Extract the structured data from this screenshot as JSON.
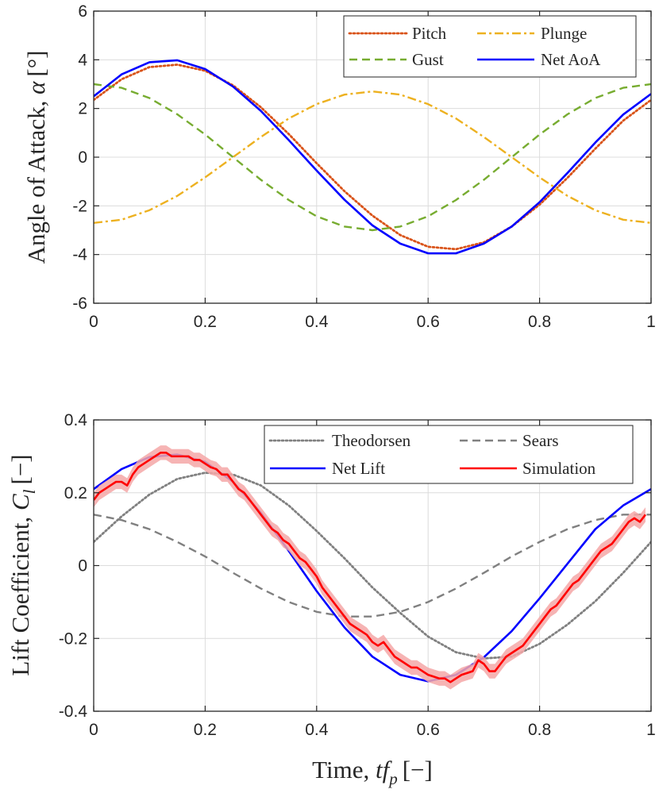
{
  "figure": {
    "xlabel_text": "Time, ",
    "xlabel_sym": "tf",
    "xlabel_sub": "p",
    "xlabel_unit": "[−]"
  },
  "chart_data": [
    {
      "type": "line",
      "title": "",
      "ylabel_text": "Angle of Attack, ",
      "ylabel_sym": "α",
      "ylabel_unit": "[°]",
      "xlim": [
        0,
        1
      ],
      "ylim": [
        -6,
        6
      ],
      "xticks": [
        0,
        0.2,
        0.4,
        0.6,
        0.8,
        1
      ],
      "xtick_labels": [
        "0",
        "0.2",
        "0.4",
        "0.6",
        "0.8",
        "1"
      ],
      "yticks": [
        -6,
        -4,
        -2,
        0,
        2,
        4,
        6
      ],
      "ytick_labels": [
        "-6",
        "-4",
        "-2",
        "0",
        "2",
        "4",
        "6"
      ],
      "grid": true,
      "legend_position": "top-right",
      "series": [
        {
          "name": "Pitch",
          "color": "#D95319",
          "style": "dotted",
          "x": [
            0,
            0.05,
            0.1,
            0.15,
            0.2,
            0.25,
            0.3,
            0.35,
            0.4,
            0.45,
            0.5,
            0.55,
            0.6,
            0.65,
            0.7,
            0.75,
            0.8,
            0.85,
            0.9,
            0.95,
            1
          ],
          "y": [
            2.35,
            3.2,
            3.7,
            3.8,
            3.55,
            2.95,
            2.05,
            0.95,
            -0.25,
            -1.4,
            -2.4,
            -3.2,
            -3.68,
            -3.78,
            -3.5,
            -2.85,
            -1.95,
            -0.85,
            0.35,
            1.5,
            2.35
          ]
        },
        {
          "name": "Plunge",
          "color": "#EDB120",
          "style": "dashdot",
          "x": [
            0,
            0.05,
            0.1,
            0.15,
            0.2,
            0.25,
            0.3,
            0.35,
            0.4,
            0.45,
            0.5,
            0.55,
            0.6,
            0.65,
            0.7,
            0.75,
            0.8,
            0.85,
            0.9,
            0.95,
            1
          ],
          "y": [
            -2.7,
            -2.57,
            -2.18,
            -1.59,
            -0.83,
            0,
            0.83,
            1.59,
            2.18,
            2.57,
            2.7,
            2.57,
            2.18,
            1.59,
            0.83,
            0,
            -0.83,
            -1.59,
            -2.18,
            -2.57,
            -2.7
          ]
        },
        {
          "name": "Gust",
          "color": "#77AC30",
          "style": "dashed",
          "x": [
            0,
            0.05,
            0.1,
            0.15,
            0.2,
            0.25,
            0.3,
            0.35,
            0.4,
            0.45,
            0.5,
            0.55,
            0.6,
            0.65,
            0.7,
            0.75,
            0.8,
            0.85,
            0.9,
            0.95,
            1
          ],
          "y": [
            3,
            2.85,
            2.43,
            1.76,
            0.93,
            0,
            -0.93,
            -1.76,
            -2.43,
            -2.85,
            -3,
            -2.85,
            -2.43,
            -1.76,
            -0.93,
            0,
            0.93,
            1.76,
            2.43,
            2.85,
            3
          ]
        },
        {
          "name": "Net AoA",
          "color": "#0000FF",
          "style": "solid",
          "x": [
            0,
            0.05,
            0.1,
            0.15,
            0.2,
            0.25,
            0.3,
            0.35,
            0.4,
            0.45,
            0.5,
            0.55,
            0.6,
            0.65,
            0.7,
            0.75,
            0.8,
            0.85,
            0.9,
            0.95,
            1
          ],
          "y": [
            2.5,
            3.4,
            3.9,
            3.98,
            3.62,
            2.9,
            1.9,
            0.7,
            -0.55,
            -1.75,
            -2.8,
            -3.55,
            -3.95,
            -3.95,
            -3.55,
            -2.85,
            -1.85,
            -0.65,
            0.6,
            1.75,
            2.6
          ]
        }
      ]
    },
    {
      "type": "line",
      "title": "",
      "ylabel_text": "Lift Coefficient, ",
      "ylabel_sym": "C",
      "ylabel_sub": "l",
      "ylabel_unit": "[−]",
      "xlim": [
        0,
        1
      ],
      "ylim": [
        -0.4,
        0.4
      ],
      "xticks": [
        0,
        0.2,
        0.4,
        0.6,
        0.8,
        1
      ],
      "xtick_labels": [
        "0",
        "0.2",
        "0.4",
        "0.6",
        "0.8",
        "1"
      ],
      "yticks": [
        -0.4,
        -0.2,
        0,
        0.2,
        0.4
      ],
      "ytick_labels": [
        "-0.4",
        "-0.2",
        "0",
        "0.2",
        "0.4"
      ],
      "grid": true,
      "legend_position": "top-right",
      "series": [
        {
          "name": "Theodorsen",
          "color": "#808080",
          "style": "dotted",
          "x": [
            0,
            0.05,
            0.1,
            0.15,
            0.2,
            0.25,
            0.3,
            0.35,
            0.4,
            0.45,
            0.5,
            0.55,
            0.6,
            0.65,
            0.7,
            0.75,
            0.8,
            0.85,
            0.9,
            0.95,
            1
          ],
          "y": [
            0.065,
            0.135,
            0.195,
            0.238,
            0.255,
            0.25,
            0.22,
            0.165,
            0.095,
            0.02,
            -0.06,
            -0.13,
            -0.195,
            -0.238,
            -0.255,
            -0.25,
            -0.215,
            -0.162,
            -0.098,
            -0.02,
            0.065
          ]
        },
        {
          "name": "Sears",
          "color": "#808080",
          "style": "dashed",
          "x": [
            0,
            0.05,
            0.1,
            0.15,
            0.2,
            0.25,
            0.3,
            0.35,
            0.4,
            0.45,
            0.5,
            0.55,
            0.6,
            0.65,
            0.7,
            0.75,
            0.8,
            0.85,
            0.9,
            0.95,
            1
          ],
          "y": [
            0.14,
            0.125,
            0.1,
            0.065,
            0.025,
            -0.02,
            -0.063,
            -0.1,
            -0.127,
            -0.14,
            -0.14,
            -0.127,
            -0.1,
            -0.063,
            -0.02,
            0.025,
            0.065,
            0.1,
            0.125,
            0.14,
            0.14
          ]
        },
        {
          "name": "Net Lift",
          "color": "#0000FF",
          "style": "solid",
          "x": [
            0,
            0.05,
            0.1,
            0.15,
            0.2,
            0.25,
            0.3,
            0.35,
            0.4,
            0.45,
            0.5,
            0.55,
            0.6,
            0.65,
            0.7,
            0.75,
            0.8,
            0.85,
            0.9,
            0.95,
            1
          ],
          "y": [
            0.21,
            0.265,
            0.298,
            0.305,
            0.285,
            0.23,
            0.145,
            0.04,
            -0.07,
            -0.17,
            -0.25,
            -0.3,
            -0.318,
            -0.3,
            -0.252,
            -0.18,
            -0.09,
            0.005,
            0.1,
            0.165,
            0.21
          ]
        },
        {
          "name": "Simulation",
          "color": "#FF0000",
          "style": "solid",
          "band_color": "#F4A7A7",
          "band_width": 0.02,
          "x": [
            0,
            0.01,
            0.02,
            0.03,
            0.04,
            0.05,
            0.06,
            0.07,
            0.08,
            0.09,
            0.1,
            0.11,
            0.12,
            0.13,
            0.14,
            0.15,
            0.16,
            0.17,
            0.18,
            0.19,
            0.2,
            0.21,
            0.22,
            0.23,
            0.24,
            0.25,
            0.26,
            0.27,
            0.28,
            0.29,
            0.3,
            0.31,
            0.32,
            0.33,
            0.34,
            0.35,
            0.36,
            0.37,
            0.38,
            0.39,
            0.4,
            0.41,
            0.42,
            0.43,
            0.44,
            0.45,
            0.46,
            0.47,
            0.48,
            0.49,
            0.5,
            0.51,
            0.52,
            0.53,
            0.54,
            0.55,
            0.56,
            0.57,
            0.58,
            0.59,
            0.6,
            0.61,
            0.62,
            0.63,
            0.64,
            0.65,
            0.66,
            0.67,
            0.68,
            0.69,
            0.7,
            0.71,
            0.72,
            0.73,
            0.74,
            0.75,
            0.76,
            0.77,
            0.78,
            0.79,
            0.8,
            0.81,
            0.82,
            0.83,
            0.84,
            0.85,
            0.86,
            0.87,
            0.88,
            0.89,
            0.9,
            0.91,
            0.92,
            0.93,
            0.94,
            0.95,
            0.96,
            0.97,
            0.98,
            0.99
          ],
          "y": [
            0.18,
            0.2,
            0.21,
            0.22,
            0.23,
            0.23,
            0.22,
            0.25,
            0.27,
            0.28,
            0.29,
            0.3,
            0.31,
            0.31,
            0.3,
            0.3,
            0.3,
            0.3,
            0.29,
            0.29,
            0.28,
            0.27,
            0.265,
            0.25,
            0.25,
            0.23,
            0.21,
            0.2,
            0.18,
            0.16,
            0.14,
            0.12,
            0.1,
            0.09,
            0.07,
            0.06,
            0.04,
            0.02,
            0.01,
            -0.01,
            -0.03,
            -0.06,
            -0.08,
            -0.1,
            -0.12,
            -0.14,
            -0.16,
            -0.17,
            -0.18,
            -0.19,
            -0.21,
            -0.22,
            -0.21,
            -0.23,
            -0.25,
            -0.26,
            -0.27,
            -0.28,
            -0.28,
            -0.29,
            -0.3,
            -0.305,
            -0.31,
            -0.31,
            -0.32,
            -0.31,
            -0.3,
            -0.295,
            -0.29,
            -0.26,
            -0.27,
            -0.29,
            -0.29,
            -0.27,
            -0.25,
            -0.24,
            -0.23,
            -0.22,
            -0.2,
            -0.18,
            -0.16,
            -0.14,
            -0.12,
            -0.11,
            -0.09,
            -0.07,
            -0.05,
            -0.04,
            -0.02,
            0,
            0.02,
            0.04,
            0.05,
            0.06,
            0.08,
            0.1,
            0.12,
            0.13,
            0.12,
            0.14
          ]
        }
      ]
    }
  ]
}
